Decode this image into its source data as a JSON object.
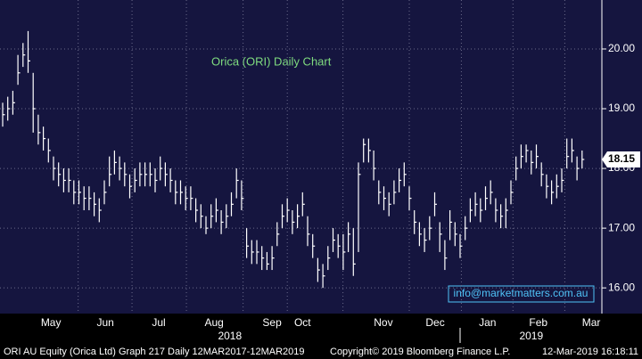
{
  "chart_data": {
    "type": "ohlc",
    "title": "Orica (ORI) Daily Chart",
    "watermark": "info@marketmatters.com.au",
    "last_price": 18.15,
    "close": [
      18.9,
      19.0,
      19.1,
      19.6,
      19.9,
      19.8,
      19.0,
      18.6,
      18.5,
      18.3,
      18.0,
      17.9,
      17.8,
      17.8,
      17.6,
      17.6,
      17.5,
      17.5,
      17.4,
      17.3,
      17.6,
      17.9,
      18.1,
      18.0,
      17.9,
      17.7,
      17.8,
      17.9,
      17.9,
      17.9,
      17.8,
      18.0,
      17.9,
      17.8,
      17.6,
      17.6,
      17.5,
      17.5,
      17.3,
      17.2,
      17.0,
      17.2,
      17.3,
      17.1,
      17.2,
      17.4,
      17.8,
      17.5,
      16.7,
      16.6,
      16.6,
      16.5,
      16.4,
      16.5,
      16.9,
      17.2,
      17.3,
      17.1,
      17.2,
      17.4,
      16.9,
      16.7,
      16.3,
      16.2,
      16.5,
      16.8,
      16.7,
      16.6,
      16.9,
      16.4,
      17.9,
      18.4,
      18.3,
      18.0,
      17.6,
      17.5,
      17.4,
      17.6,
      17.8,
      17.9,
      17.5,
      17.1,
      16.9,
      16.8,
      17.0,
      17.4,
      16.9,
      16.5,
      17.1,
      16.9,
      16.7,
      17.0,
      17.3,
      17.4,
      17.3,
      17.5,
      17.6,
      17.3,
      17.2,
      17.3,
      17.6,
      18.0,
      18.2,
      18.3,
      18.1,
      18.2,
      17.9,
      17.7,
      17.6,
      17.7,
      17.8,
      18.2,
      18.3,
      18.0,
      18.15
    ],
    "high": [
      19.1,
      19.2,
      19.3,
      19.9,
      20.1,
      20.3,
      19.6,
      18.9,
      18.7,
      18.5,
      18.2,
      18.1,
      18.0,
      18.0,
      17.8,
      17.8,
      17.7,
      17.7,
      17.6,
      17.5,
      17.8,
      18.2,
      18.3,
      18.2,
      18.1,
      17.9,
      18.0,
      18.1,
      18.1,
      18.1,
      18.0,
      18.2,
      18.1,
      18.0,
      17.8,
      17.8,
      17.7,
      17.7,
      17.5,
      17.4,
      17.2,
      17.4,
      17.5,
      17.3,
      17.4,
      17.6,
      18.0,
      17.8,
      17.0,
      16.8,
      16.8,
      16.7,
      16.6,
      16.7,
      17.1,
      17.4,
      17.5,
      17.3,
      17.4,
      17.6,
      17.2,
      16.9,
      16.5,
      16.4,
      16.7,
      17.0,
      16.9,
      16.9,
      17.1,
      17.0,
      18.1,
      18.5,
      18.5,
      18.3,
      17.8,
      17.7,
      17.6,
      17.8,
      18.0,
      18.1,
      17.7,
      17.3,
      17.1,
      17.0,
      17.2,
      17.6,
      17.1,
      16.8,
      17.3,
      17.1,
      16.9,
      17.2,
      17.5,
      17.6,
      17.5,
      17.7,
      17.8,
      17.5,
      17.4,
      17.5,
      17.8,
      18.2,
      18.4,
      18.4,
      18.3,
      18.4,
      18.1,
      17.9,
      17.8,
      17.9,
      18.0,
      18.5,
      18.5,
      18.2,
      18.3
    ],
    "low": [
      18.7,
      18.8,
      18.9,
      19.4,
      19.7,
      19.6,
      18.6,
      18.4,
      18.3,
      18.1,
      17.8,
      17.7,
      17.6,
      17.6,
      17.4,
      17.4,
      17.3,
      17.3,
      17.2,
      17.1,
      17.4,
      17.7,
      17.9,
      17.8,
      17.7,
      17.5,
      17.6,
      17.7,
      17.7,
      17.7,
      17.6,
      17.8,
      17.7,
      17.6,
      17.4,
      17.4,
      17.3,
      17.3,
      17.1,
      17.0,
      16.9,
      17.0,
      17.1,
      16.9,
      17.0,
      17.2,
      17.5,
      17.3,
      16.5,
      16.4,
      16.4,
      16.3,
      16.3,
      16.3,
      16.7,
      17.0,
      17.1,
      16.9,
      17.0,
      17.2,
      16.7,
      16.5,
      16.1,
      16.0,
      16.3,
      16.6,
      16.5,
      16.3,
      16.6,
      16.2,
      16.6,
      18.1,
      18.1,
      17.8,
      17.4,
      17.3,
      17.2,
      17.4,
      17.6,
      17.7,
      17.3,
      16.9,
      16.7,
      16.6,
      16.8,
      17.2,
      16.6,
      16.3,
      16.8,
      16.7,
      16.5,
      16.8,
      17.1,
      17.2,
      17.1,
      17.3,
      17.4,
      17.1,
      17.0,
      17.0,
      17.4,
      17.8,
      18.0,
      18.1,
      17.9,
      18.0,
      17.7,
      17.5,
      17.4,
      17.5,
      17.6,
      18.0,
      18.1,
      17.8,
      18.0
    ],
    "color": "#ffffff",
    "ylim": [
      15.57,
      20.82
    ],
    "yticks": [
      {
        "value": 16,
        "label": "16.00"
      },
      {
        "value": 17,
        "label": "17.00"
      },
      {
        "value": 18,
        "label": "18.00"
      },
      {
        "value": 19,
        "label": "19.00"
      },
      {
        "value": 20,
        "label": "20.00"
      }
    ],
    "xticks": [
      {
        "value": 9.5,
        "label": "May"
      },
      {
        "value": 20.2,
        "label": "Jun"
      },
      {
        "value": 30.7,
        "label": "Jul"
      },
      {
        "value": 41.6,
        "label": "Aug"
      },
      {
        "value": 53,
        "label": "Sep"
      },
      {
        "value": 59,
        "label": "Oct"
      },
      {
        "value": 74.9,
        "label": "Nov"
      },
      {
        "value": 85.1,
        "label": "Dec"
      },
      {
        "value": 95.4,
        "label": "Jan"
      },
      {
        "value": 105.4,
        "label": "Feb"
      },
      {
        "value": 115.8,
        "label": "Mar"
      }
    ],
    "year_labels": [
      {
        "value": 44.7,
        "label": "2018"
      },
      {
        "value": 104,
        "label": "2019"
      }
    ],
    "grid": true,
    "footer": {
      "left": "ORI AU Equity (Orica Ltd) Graph 217  Daily 12MAR2017-12MAR2019",
      "center": "Copyright© 2019 Bloomberg Finance L.P.",
      "right": "12-Mar-2019 16:18:11"
    }
  }
}
